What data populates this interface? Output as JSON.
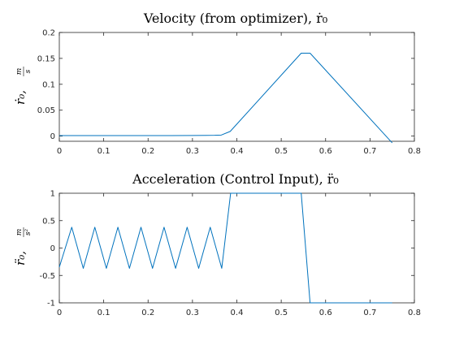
{
  "chart_data": [
    {
      "type": "line",
      "title": "Velocity (from optimizer), ṙ₀",
      "ylabel": "ṙ₀,",
      "ylabel_unit_num": "m",
      "ylabel_unit_den": "s",
      "xlim": [
        0,
        0.8
      ],
      "ylim": [
        -0.01,
        0.2
      ],
      "xticks": [
        "0",
        "0.1",
        "0.2",
        "0.3",
        "0.4",
        "0.5",
        "0.6",
        "0.7",
        "0.8"
      ],
      "yticks": [
        "0",
        "0.05",
        "0.1",
        "0.15",
        "0.2"
      ],
      "xtick_values": [
        0,
        0.1,
        0.2,
        0.3,
        0.4,
        0.5,
        0.6,
        0.7,
        0.8
      ],
      "ytick_values": [
        0,
        0.05,
        0.1,
        0.15,
        0.2
      ],
      "series": [
        {
          "color": "#0072bd",
          "x": [
            0,
            0.05,
            0.1,
            0.15,
            0.2,
            0.25,
            0.3,
            0.35,
            0.365,
            0.385,
            0.545,
            0.565,
            0.75
          ],
          "y": [
            0.001,
            0.001,
            0.001,
            0.001,
            0.001,
            0.001,
            0.0012,
            0.0015,
            0.002,
            0.009,
            0.16,
            0.16,
            -0.013
          ]
        }
      ]
    },
    {
      "type": "line",
      "title": "Acceleration (Control Input), r̈₀",
      "ylabel": "r̈₀,",
      "ylabel_unit_num": "m",
      "ylabel_unit_den": "s²",
      "xlim": [
        0,
        0.8
      ],
      "ylim": [
        -1,
        1
      ],
      "xticks": [
        "0",
        "0.1",
        "0.2",
        "0.3",
        "0.4",
        "0.5",
        "0.6",
        "0.7",
        "0.8"
      ],
      "yticks": [
        "-1",
        "-0.5",
        "0",
        "0.5",
        "1"
      ],
      "xtick_values": [
        0,
        0.1,
        0.2,
        0.3,
        0.4,
        0.5,
        0.6,
        0.7,
        0.8
      ],
      "ytick_values": [
        -1,
        -0.5,
        0,
        0.5,
        1
      ],
      "series": [
        {
          "color": "#0072bd",
          "x": [
            0,
            0.028,
            0.054,
            0.08,
            0.106,
            0.132,
            0.158,
            0.184,
            0.21,
            0.236,
            0.262,
            0.288,
            0.314,
            0.34,
            0.366,
            0.386,
            0.39,
            0.54,
            0.545,
            0.565,
            0.75
          ],
          "y": [
            -0.35,
            0.38,
            -0.37,
            0.38,
            -0.37,
            0.38,
            -0.37,
            0.38,
            -0.37,
            0.38,
            -0.37,
            0.38,
            -0.37,
            0.38,
            -0.37,
            1,
            1,
            1,
            1,
            -1,
            -1
          ]
        }
      ]
    }
  ]
}
